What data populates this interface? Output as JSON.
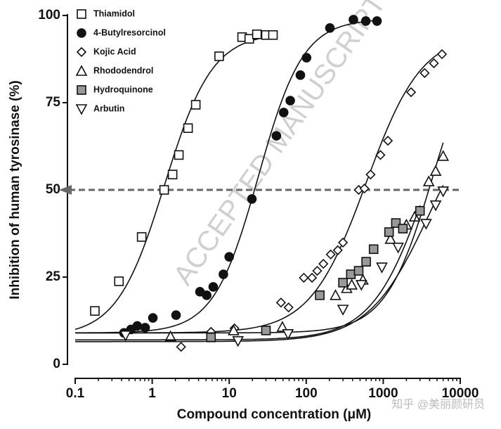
{
  "chart_data": {
    "type": "scatter",
    "xlabel": "Compound concentration (μM)",
    "ylabel": "Inhibition of human tyrosinase (%)",
    "xlim": [
      0.1,
      10000
    ],
    "ylim": [
      0,
      100
    ],
    "xscale": "log",
    "xticks": [
      0.1,
      1,
      10,
      100,
      1000,
      10000
    ],
    "yticks": [
      0,
      25,
      50,
      75,
      100
    ],
    "hline": 50,
    "legend": "upper left",
    "watermarks": [
      "ACCEPTED MANUSCRIPT",
      "知乎 @美丽颜研员"
    ],
    "series": [
      {
        "name": "Thiamidol",
        "marker": "square",
        "color": "#ffffff",
        "x": [
          0.18,
          0.37,
          0.73,
          1.43,
          1.84,
          2.22,
          2.92,
          3.68,
          7.4,
          14.7,
          18.2,
          22.9,
          30,
          37
        ],
        "values": [
          15.3,
          23.8,
          36.5,
          50,
          54.4,
          60,
          67.7,
          74.4,
          88.3,
          93.8,
          93.3,
          94.6,
          94.4,
          94.4
        ],
        "fit": {
          "bottom": 8,
          "top": 95,
          "ic50": 1.45,
          "hill": 1.4
        }
      },
      {
        "name": "4-Butylresorcinol",
        "marker": "circle",
        "color": "#111111",
        "x": [
          0.43,
          0.53,
          0.64,
          0.81,
          1.02,
          2.04,
          4.17,
          5.1,
          6.2,
          8.4,
          10,
          19.7,
          41,
          51,
          62,
          84,
          101,
          203,
          410,
          594,
          830
        ],
        "values": [
          9,
          10,
          11,
          10.5,
          13.3,
          14.1,
          20.8,
          19.8,
          22.2,
          25.8,
          30.8,
          47.4,
          65.5,
          72.2,
          75.6,
          82.9,
          87.9,
          96.4,
          98.8,
          98.4,
          98.4
        ],
        "fit": {
          "bottom": 9,
          "top": 99,
          "ic50": 24,
          "hill": 1.5
        }
      },
      {
        "name": "Kojic Acid",
        "marker": "diamond",
        "color": "#ffffff",
        "x": [
          2.37,
          5.8,
          11.7,
          47,
          59,
          93,
          119,
          139,
          167,
          208,
          257,
          300,
          480,
          570,
          685,
          920,
          1150,
          2300,
          3450,
          4550,
          5800
        ],
        "values": [
          5,
          9.3,
          10.3,
          17.7,
          16.3,
          24.8,
          24.8,
          26.8,
          28.8,
          31.5,
          32.7,
          34.9,
          50,
          50.4,
          54.4,
          60,
          64.1,
          78,
          83.5,
          86.3,
          88.9
        ],
        "fit": {
          "bottom": 9,
          "top": 95,
          "ic50": 600,
          "hill": 1.2
        }
      },
      {
        "name": "Rhododendrol",
        "marker": "triangle-up",
        "color": "#ffffff",
        "x": [
          1.73,
          11.4,
          49,
          240,
          336,
          390,
          545,
          1240,
          2000,
          2560,
          3900,
          4800,
          6000
        ],
        "values": [
          8,
          9.7,
          10.7,
          19.8,
          21.8,
          22.8,
          24.2,
          35.9,
          40,
          42.3,
          52.4,
          55.4,
          59.7
        ],
        "fit": {
          "bottom": 9,
          "top": 100,
          "ic50": 4500,
          "hill": 1.4
        }
      },
      {
        "name": "Hydroquinone",
        "marker": "square",
        "color": "#999999",
        "x": [
          5.8,
          30,
          150,
          300,
          380,
          480,
          600,
          750,
          1190,
          1460,
          1800,
          3000
        ],
        "values": [
          7.7,
          9.7,
          19.8,
          23.4,
          25.8,
          26.8,
          29.4,
          33,
          37.9,
          40.5,
          38.9,
          44
        ],
        "fit": {
          "bottom": 7,
          "top": 100,
          "ic50": 4000,
          "hill": 1.2
        }
      },
      {
        "name": "Arbutin",
        "marker": "triangle-down",
        "color": "#ffffff",
        "x": [
          0.45,
          13,
          58,
          300,
          520,
          960,
          1560,
          3600,
          4800,
          6000
        ],
        "values": [
          8.3,
          6.7,
          8.7,
          15.7,
          22.8,
          27.8,
          33.5,
          40.3,
          45.6,
          49.6
        ],
        "fit": {
          "bottom": 6.5,
          "top": 80,
          "ic50": 4000,
          "hill": 1.1
        }
      }
    ]
  }
}
